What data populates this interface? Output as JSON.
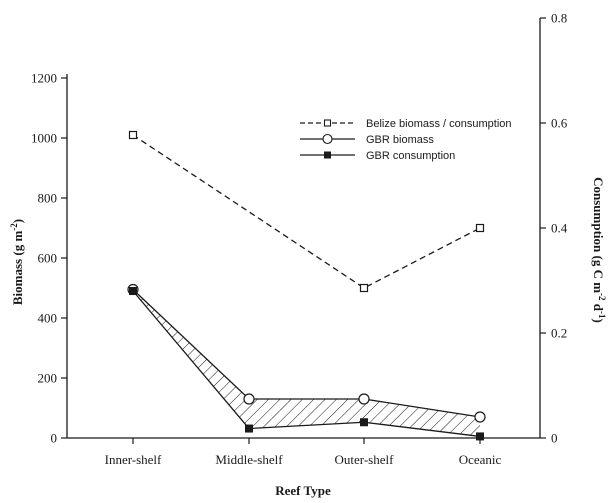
{
  "chart_data": {
    "type": "line",
    "categories": [
      "Inner-shelf",
      "Middle-shelf",
      "Outer-shelf",
      "Oceanic"
    ],
    "xlabel": "Reef Type",
    "ylabel_left": "Biomass (g m",
    "ylabel_left_sup": "-2",
    "ylabel_left_tail": ")",
    "ylabel_right": "Consumption (g C m",
    "ylabel_right_sup1": "-2",
    "ylabel_right_mid": " d",
    "ylabel_right_sup2": "-1",
    "ylabel_right_tail": ")",
    "ylim_left": [
      0,
      1200
    ],
    "yticks_left": [
      "0",
      "200",
      "400",
      "600",
      "800",
      "1000",
      "1200"
    ],
    "ylim_right": [
      0,
      0.8
    ],
    "yticks_right": [
      "0",
      "0.2",
      "0.4",
      "0.6",
      "0.8"
    ],
    "legend_position": "top-right",
    "series": [
      {
        "name": "Belize biomass / consumption",
        "axis": "left",
        "values": [
          1010,
          null,
          500,
          700
        ],
        "style": "dashed",
        "marker": "open-square"
      },
      {
        "name": "GBR biomass",
        "axis": "left",
        "values": [
          495,
          130,
          130,
          70
        ],
        "style": "solid",
        "marker": "open-circle"
      },
      {
        "name": "GBR consumption",
        "axis": "right",
        "values": [
          0.28,
          0.018,
          0.03,
          0.003
        ],
        "style": "solid",
        "marker": "filled-square"
      }
    ],
    "shaded_between": [
      "GBR biomass",
      "GBR consumption"
    ],
    "grid": false
  },
  "colors": {
    "ink": "#1a1a1a",
    "background": "#ffffff"
  }
}
